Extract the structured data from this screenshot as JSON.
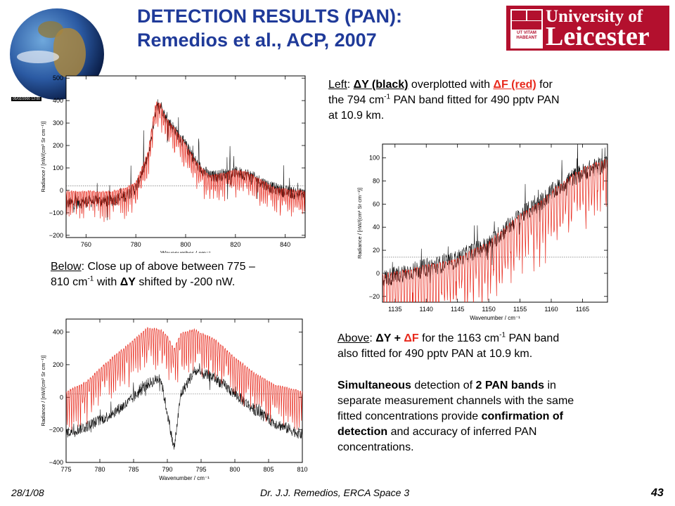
{
  "title": {
    "line1": "DETECTION RESULTS (PAN):",
    "line2": "Remedios et al., ACP, 2007"
  },
  "globe_caption": "05/02/2000 12:00",
  "logo": {
    "univ": "University of",
    "leic": "Leicester",
    "motto": "UT VITAM HABEANT"
  },
  "top_right_text": {
    "prefix": "Left",
    "part1": ": ",
    "dy": "ΔY (black)",
    "part2": " overplotted with ",
    "df": "ΔF (red)",
    "part3": " for",
    "line2a": "the 794 cm",
    "sup": "-1",
    "line2b": " PAN band fitted for 490 pptv PAN",
    "line3": "at 10.9 km."
  },
  "below_text": {
    "prefix": "Below",
    "part1": ": Close up of above between 775 –",
    "line2a": "810 cm",
    "sup": "-1",
    "line2b": " with ",
    "dy": "ΔY",
    "line2c": " shifted by -200 nW."
  },
  "above_text": {
    "prefix": "Above",
    "part1": ": ",
    "dy": "ΔY +",
    "df": "ΔF",
    "part2": " for the 1163 cm",
    "sup": "-1",
    "part3": " PAN band",
    "line2": "also fitted for 490 pptv PAN at 10.9 km."
  },
  "summary_text": {
    "b1": "Simultaneous",
    "t1": " detection of ",
    "b2": "2 PAN bands",
    "t2": " in",
    "line2": "separate measurement channels with the same",
    "line3a": "fitted concentrations provide ",
    "b3": "confirmation of",
    "b4": "detection",
    "line4a": " and accuracy of inferred PAN",
    "line5": "concentrations."
  },
  "footer": {
    "date": "28/1/08",
    "author": "Dr. J.J. Remedios, ERCA Space 3",
    "page": "43"
  },
  "colors": {
    "title": "#1f3a99",
    "red": "#e8291c",
    "logo": "#b3102e"
  },
  "chart_data": [
    {
      "type": "line",
      "xlabel": "Wavenumber / cm⁻¹",
      "ylabel": "Radiance / [nW/(cm² Sr cm⁻¹)]",
      "xlim": [
        752,
        848
      ],
      "ylim": [
        -210,
        510
      ],
      "xticks": [
        760,
        780,
        800,
        820,
        840
      ],
      "yticks": [
        -200,
        -100,
        0,
        100,
        200,
        300,
        400,
        500
      ],
      "reference_line": 20,
      "series": [
        {
          "color": "black",
          "x": [
            752,
            760,
            770,
            775,
            780,
            785,
            788,
            790,
            792,
            795,
            800,
            805,
            810,
            815,
            820,
            825,
            830,
            835,
            840,
            848
          ],
          "y": [
            -60,
            -50,
            -45,
            -30,
            10,
            150,
            360,
            380,
            320,
            280,
            200,
            110,
            60,
            70,
            80,
            70,
            40,
            10,
            -5,
            -20
          ]
        },
        {
          "color": "red",
          "x": [
            752,
            760,
            770,
            775,
            780,
            785,
            788,
            790,
            792,
            795,
            800,
            805,
            810,
            815,
            820,
            825,
            830,
            835,
            840,
            848
          ],
          "y": [
            0,
            0,
            0,
            10,
            40,
            180,
            400,
            390,
            330,
            290,
            210,
            120,
            70,
            80,
            95,
            85,
            55,
            20,
            10,
            0
          ]
        }
      ]
    },
    {
      "type": "line",
      "xlabel": "Wavenumber / cm⁻¹",
      "ylabel": "Radiance / [nW/(cm² Sr cm⁻¹)]",
      "xlim": [
        1133,
        1169
      ],
      "ylim": [
        -25,
        112
      ],
      "xticks": [
        1135,
        1140,
        1145,
        1150,
        1155,
        1160,
        1165
      ],
      "yticks": [
        -20,
        0,
        20,
        40,
        60,
        80,
        100
      ],
      "reference_line": 14,
      "series": [
        {
          "color": "black",
          "x": [
            1133,
            1136,
            1140,
            1144,
            1147,
            1150,
            1152,
            1155,
            1158,
            1160,
            1163,
            1166,
            1169
          ],
          "y": [
            -5,
            0,
            5,
            10,
            18,
            25,
            35,
            50,
            60,
            70,
            82,
            90,
            95
          ]
        },
        {
          "color": "red",
          "x": [
            1133,
            1136,
            1140,
            1144,
            1147,
            1150,
            1152,
            1155,
            1158,
            1160,
            1163,
            1166,
            1169
          ],
          "y": [
            0,
            3,
            8,
            12,
            20,
            28,
            38,
            52,
            62,
            72,
            85,
            95,
            100
          ]
        }
      ]
    },
    {
      "type": "line",
      "xlabel": "Wavenumber / cm⁻¹",
      "ylabel": "Radiance / [nW/(cm² Sr cm⁻¹)]",
      "xlim": [
        775,
        810
      ],
      "ylim": [
        -400,
        480
      ],
      "xticks": [
        775,
        780,
        785,
        790,
        795,
        800,
        805,
        810
      ],
      "yticks": [
        -400,
        -200,
        0,
        200,
        400
      ],
      "reference_line": 20,
      "series": [
        {
          "color": "black",
          "x": [
            775,
            778,
            781,
            784,
            787,
            789,
            790,
            791,
            792,
            794,
            797,
            800,
            803,
            806,
            810
          ],
          "y": [
            -220,
            -180,
            -120,
            -40,
            80,
            120,
            -100,
            -320,
            20,
            160,
            120,
            20,
            -80,
            -160,
            -230
          ]
        },
        {
          "color": "red",
          "x": [
            775,
            778,
            781,
            784,
            787,
            789,
            790,
            791,
            792,
            794,
            797,
            800,
            803,
            806,
            810
          ],
          "y": [
            40,
            100,
            220,
            320,
            430,
            420,
            380,
            300,
            400,
            420,
            360,
            250,
            150,
            80,
            40
          ]
        }
      ]
    }
  ]
}
